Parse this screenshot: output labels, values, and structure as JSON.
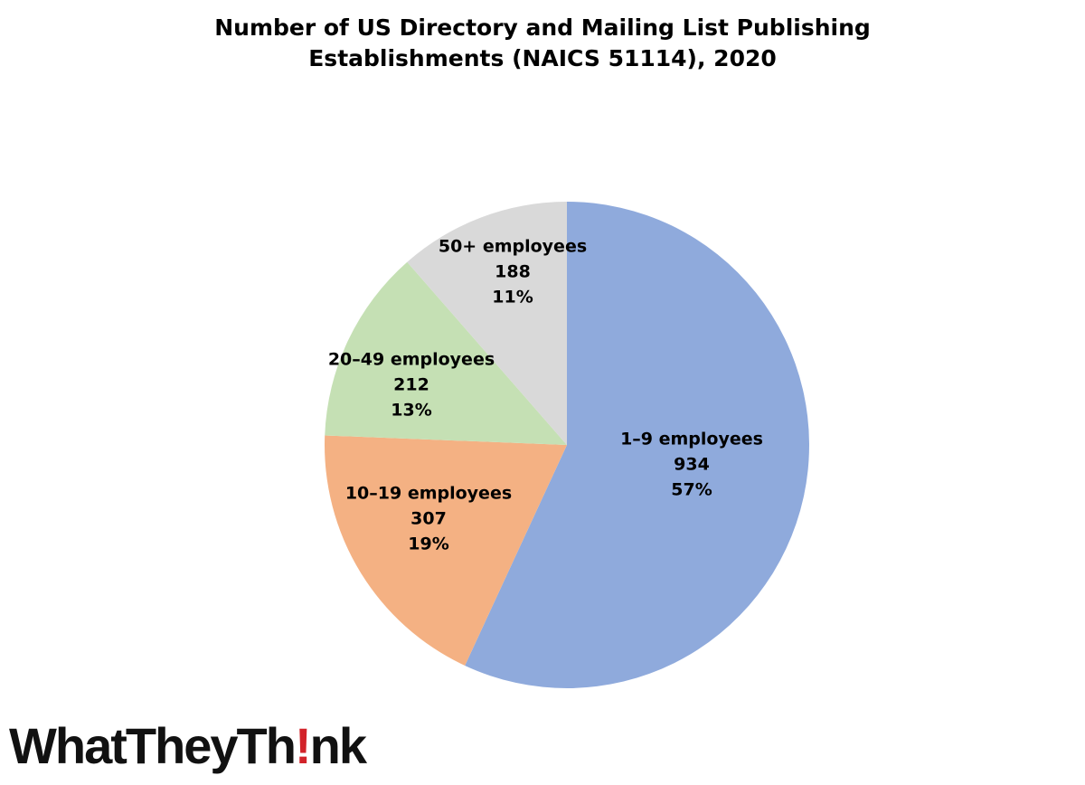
{
  "chart_data": {
    "type": "pie",
    "title_lines": [
      "Number of US Directory and Mailing List Publishing",
      "Establishments (NAICS 51114), 2020"
    ],
    "slices": [
      {
        "label": "1–9 employees",
        "value": 934,
        "percent": "57%",
        "color": "#8faadc"
      },
      {
        "label": "10–19 employees",
        "value": 307,
        "percent": "19%",
        "color": "#f4b183"
      },
      {
        "label": "20–49 employees",
        "value": 212,
        "percent": "13%",
        "color": "#c5e0b4"
      },
      {
        "label": "50+ employees",
        "value": 188,
        "percent": "11%",
        "color": "#d9d9d9"
      }
    ],
    "start": "top",
    "direction": "clockwise"
  },
  "logo": {
    "pre": "WhatTheyTh",
    "bang": "!",
    "post": "nk",
    "accent_color": "#d2232a"
  }
}
